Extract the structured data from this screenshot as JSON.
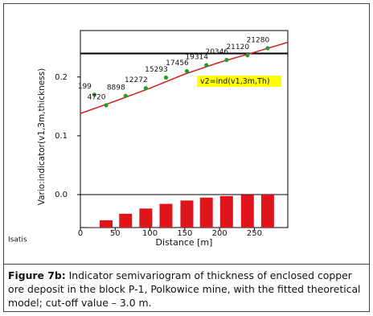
{
  "chart_data": {
    "type": "scatter",
    "y_label": "Vario:indicator(v1,3m,thickness)",
    "x_label": "Distance [m]",
    "annotation": "v2=ind(v1,3m,Th)",
    "software": "Isatis",
    "xlim": [
      0,
      298
    ],
    "ylim": [
      -0.056,
      0.279
    ],
    "xticks": [
      0,
      50,
      100,
      150,
      200,
      250
    ],
    "yticks": [
      {
        "value": 0,
        "label": "0.0"
      },
      0.1,
      0.2
    ],
    "sill": 0.24,
    "x": [
      20,
      37,
      65,
      94,
      123,
      153,
      181,
      210,
      240,
      269
    ],
    "values": [
      0.17,
      0.152,
      0.168,
      0.181,
      0.199,
      0.21,
      0.22,
      0.229,
      0.237,
      0.249
    ],
    "color": "#2a9a2a",
    "pairs": [
      199,
      4720,
      8898,
      12272,
      15293,
      17456,
      19314,
      20346,
      21120,
      21280
    ],
    "pairs_color": "#e0141b",
    "model": {
      "x": [
        0,
        50,
        100,
        150,
        200,
        250,
        298
      ],
      "values": [
        0.138,
        0.159,
        0.181,
        0.205,
        0.225,
        0.242,
        0.259
      ],
      "color": "#d42020"
    }
  },
  "caption": {
    "label": "Figure 7b:",
    "text": "Indicator semivariogram of thickness of enclosed copper ore deposit in the block P-1, Polkowice mine, with the fitted theoretical model; cut-off value – 3.0 m."
  }
}
